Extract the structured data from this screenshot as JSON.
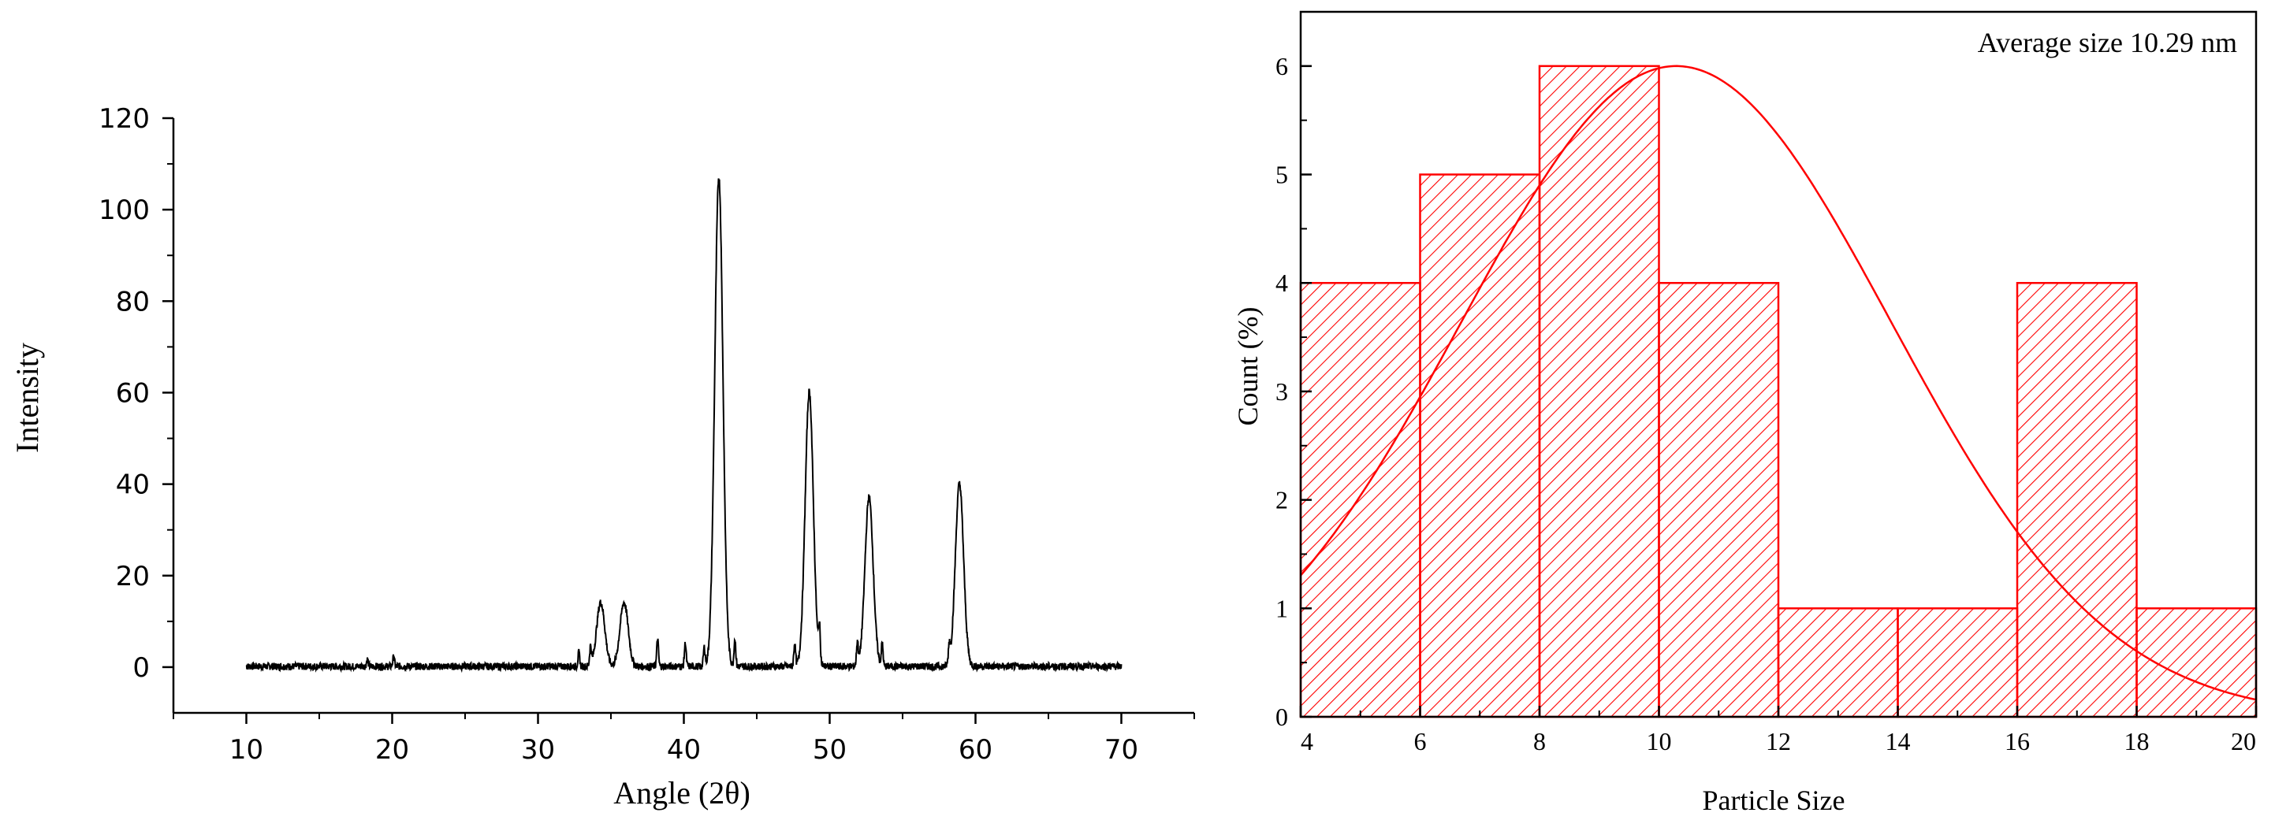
{
  "chart_data": [
    {
      "type": "line",
      "title": "",
      "xlabel": "Angle (2θ)",
      "ylabel": "Intensity",
      "xlim": [
        5,
        75
      ],
      "ylim": [
        -10,
        120
      ],
      "xticks": [
        10,
        20,
        30,
        40,
        50,
        60,
        70
      ],
      "yticks": [
        0,
        20,
        40,
        60,
        80,
        100,
        120
      ],
      "xtick_labels": [
        "10",
        "20",
        "30",
        "40",
        "50",
        "60",
        "70"
      ],
      "ytick_labels": [
        "0",
        "20",
        "40",
        "60",
        "80",
        "100",
        "120"
      ],
      "grid": false,
      "peaks": [
        {
          "x": 34.3,
          "y": 14
        },
        {
          "x": 35.9,
          "y": 14
        },
        {
          "x": 42.4,
          "y": 107
        },
        {
          "x": 48.6,
          "y": 60
        },
        {
          "x": 52.7,
          "y": 37
        },
        {
          "x": 58.9,
          "y": 40
        }
      ],
      "spikes": [
        {
          "x": 18.3,
          "y": 1.5
        },
        {
          "x": 20.1,
          "y": 2
        },
        {
          "x": 32.8,
          "y": 3
        },
        {
          "x": 33.6,
          "y": 4
        },
        {
          "x": 38.2,
          "y": 6
        },
        {
          "x": 40.1,
          "y": 5
        },
        {
          "x": 41.4,
          "y": 4
        },
        {
          "x": 43.5,
          "y": 6
        },
        {
          "x": 47.6,
          "y": 5
        },
        {
          "x": 49.3,
          "y": 7
        },
        {
          "x": 51.9,
          "y": 5
        },
        {
          "x": 53.6,
          "y": 5
        },
        {
          "x": 58.2,
          "y": 4
        }
      ],
      "x_range": [
        10,
        70
      ]
    },
    {
      "type": "bar",
      "title": "",
      "xlabel": "Particle Size",
      "ylabel": "Count (%)",
      "xlim": [
        4,
        20
      ],
      "ylim": [
        0,
        6.5
      ],
      "xticks": [
        4,
        6,
        8,
        10,
        12,
        14,
        16,
        18,
        20
      ],
      "yticks": [
        0,
        1,
        2,
        3,
        4,
        5,
        6
      ],
      "xtick_labels": [
        "4",
        "6",
        "8",
        "10",
        "12",
        "14",
        "16",
        "18",
        "20"
      ],
      "ytick_labels": [
        "0",
        "1",
        "2",
        "3",
        "4",
        "5",
        "6"
      ],
      "bin_edges": [
        4,
        6,
        8,
        10,
        12,
        14,
        16,
        18,
        20
      ],
      "values": [
        4,
        5,
        6,
        4,
        1,
        1,
        4,
        1
      ],
      "fit_curve": {
        "type": "gaussian",
        "mean": 10.29,
        "peak": 6,
        "sigma": 3.6
      },
      "annotation": "Average size 10.29 nm",
      "color": "#ff0000",
      "grid": false
    }
  ]
}
